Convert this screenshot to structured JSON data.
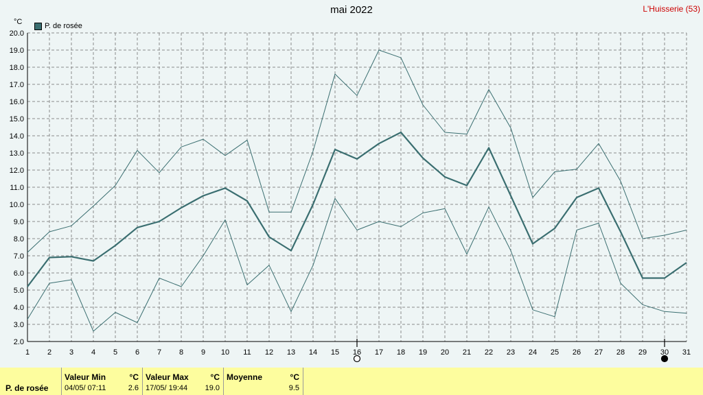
{
  "header": {
    "title": "mai 2022",
    "station": "L'Huisserie (53)",
    "unit": "°C"
  },
  "legend": {
    "label": "P. de rosée"
  },
  "chart_data": {
    "type": "line",
    "title": "mai 2022",
    "ylabel": "°C",
    "xlim": [
      1,
      31
    ],
    "ylim": [
      2.0,
      20.0
    ],
    "x_ticks": [
      1,
      2,
      3,
      4,
      5,
      6,
      7,
      8,
      9,
      10,
      11,
      12,
      13,
      14,
      15,
      16,
      17,
      18,
      19,
      20,
      21,
      22,
      23,
      24,
      25,
      26,
      27,
      28,
      29,
      30,
      31
    ],
    "y_ticks": [
      2.0,
      3.0,
      4.0,
      5.0,
      6.0,
      7.0,
      8.0,
      9.0,
      10.0,
      11.0,
      12.0,
      13.0,
      14.0,
      15.0,
      16.0,
      17.0,
      18.0,
      19.0,
      20.0
    ],
    "grid": true,
    "moon_markers": [
      {
        "day": 16,
        "phase": "full-moon"
      },
      {
        "day": 30,
        "phase": "new-moon"
      }
    ],
    "series": [
      {
        "name": "P. de rosée",
        "role": "mean",
        "color": "#3a6e70",
        "x": [
          1,
          2,
          3,
          4,
          5,
          6,
          7,
          8,
          9,
          10,
          11,
          12,
          13,
          14,
          15,
          16,
          17,
          18,
          19,
          20,
          21,
          22,
          23,
          24,
          25,
          26,
          27,
          28,
          29,
          30,
          31
        ],
        "values": [
          5.2,
          6.9,
          6.95,
          6.7,
          7.6,
          8.65,
          9.0,
          9.8,
          10.5,
          10.95,
          10.2,
          8.1,
          7.3,
          10.0,
          13.2,
          12.65,
          13.55,
          14.2,
          12.7,
          11.6,
          11.1,
          13.3,
          10.5,
          7.7,
          8.6,
          10.4,
          10.95,
          8.4,
          5.7,
          5.7,
          6.6
        ]
      },
      {
        "role": "max",
        "color": "#3a6e70",
        "x": [
          1,
          2,
          3,
          4,
          5,
          6,
          7,
          8,
          9,
          10,
          11,
          12,
          13,
          14,
          15,
          16,
          17,
          18,
          19,
          20,
          21,
          22,
          23,
          24,
          25,
          26,
          27,
          28,
          29,
          30,
          31
        ],
        "values": [
          7.2,
          8.4,
          8.75,
          9.9,
          11.1,
          13.15,
          11.85,
          13.35,
          13.8,
          12.85,
          13.75,
          9.55,
          9.55,
          13.1,
          17.6,
          16.35,
          19.0,
          18.55,
          15.8,
          14.2,
          14.1,
          16.7,
          14.45,
          10.4,
          11.9,
          12.05,
          13.55,
          11.35,
          8.0,
          8.2,
          8.5
        ]
      },
      {
        "role": "min",
        "color": "#3a6e70",
        "x": [
          1,
          2,
          3,
          4,
          5,
          6,
          7,
          8,
          9,
          10,
          11,
          12,
          13,
          14,
          15,
          16,
          17,
          18,
          19,
          20,
          21,
          22,
          23,
          24,
          25,
          26,
          27,
          28,
          29,
          30,
          31
        ],
        "values": [
          3.3,
          5.4,
          5.6,
          2.6,
          3.7,
          3.1,
          5.7,
          5.2,
          7.0,
          9.1,
          5.3,
          6.45,
          3.75,
          6.45,
          10.35,
          8.5,
          9.0,
          8.7,
          9.5,
          9.75,
          7.1,
          9.85,
          7.3,
          3.85,
          3.45,
          8.5,
          8.9,
          5.4,
          4.15,
          3.75,
          3.65
        ]
      }
    ]
  },
  "footer": {
    "series_label": "P. de rosée",
    "min": {
      "label": "Valeur Min",
      "unit": "°C",
      "date": "04/05/  07:11",
      "value": "2.6"
    },
    "max": {
      "label": "Valeur Max",
      "unit": "°C",
      "date": "17/05/  19:44",
      "value": "19.0"
    },
    "mean": {
      "label": "Moyenne",
      "unit": "°C",
      "value": "9.5"
    }
  }
}
